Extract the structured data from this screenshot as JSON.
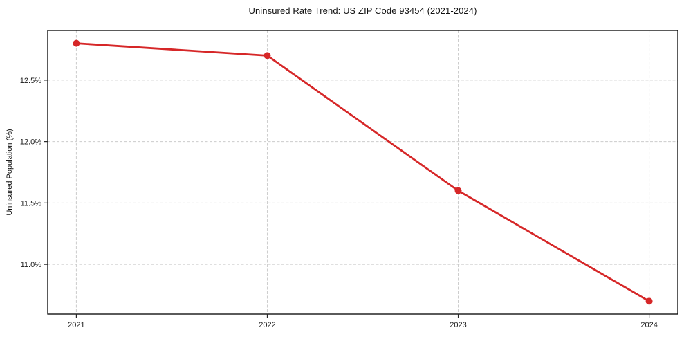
{
  "chart_data": {
    "type": "line",
    "title": "Uninsured Rate Trend: US ZIP Code 93454 (2021-2024)",
    "xlabel": "",
    "ylabel": "Uninsured Population (%)",
    "x": [
      2021,
      2022,
      2023,
      2024
    ],
    "values": [
      12.8,
      12.7,
      11.6,
      10.7
    ],
    "xlim": [
      2020.85,
      2024.15
    ],
    "ylim": [
      10.595,
      12.905
    ],
    "xticks": {
      "values": [
        2021,
        2022,
        2023,
        2024
      ],
      "labels": [
        "2021",
        "2022",
        "2023",
        "2024"
      ]
    },
    "yticks": {
      "values": [
        11.0,
        11.5,
        12.0,
        12.5
      ],
      "labels": [
        "11.0%",
        "11.5%",
        "12.0%",
        "12.5%"
      ]
    },
    "grid": true,
    "legend": "none",
    "marker": "circle",
    "colors": {
      "line": "#d62728",
      "marker": "#d62728",
      "grid": "#cccccc",
      "spine": "#000000",
      "tick": "#262626",
      "text": "#1a1a1a"
    }
  }
}
